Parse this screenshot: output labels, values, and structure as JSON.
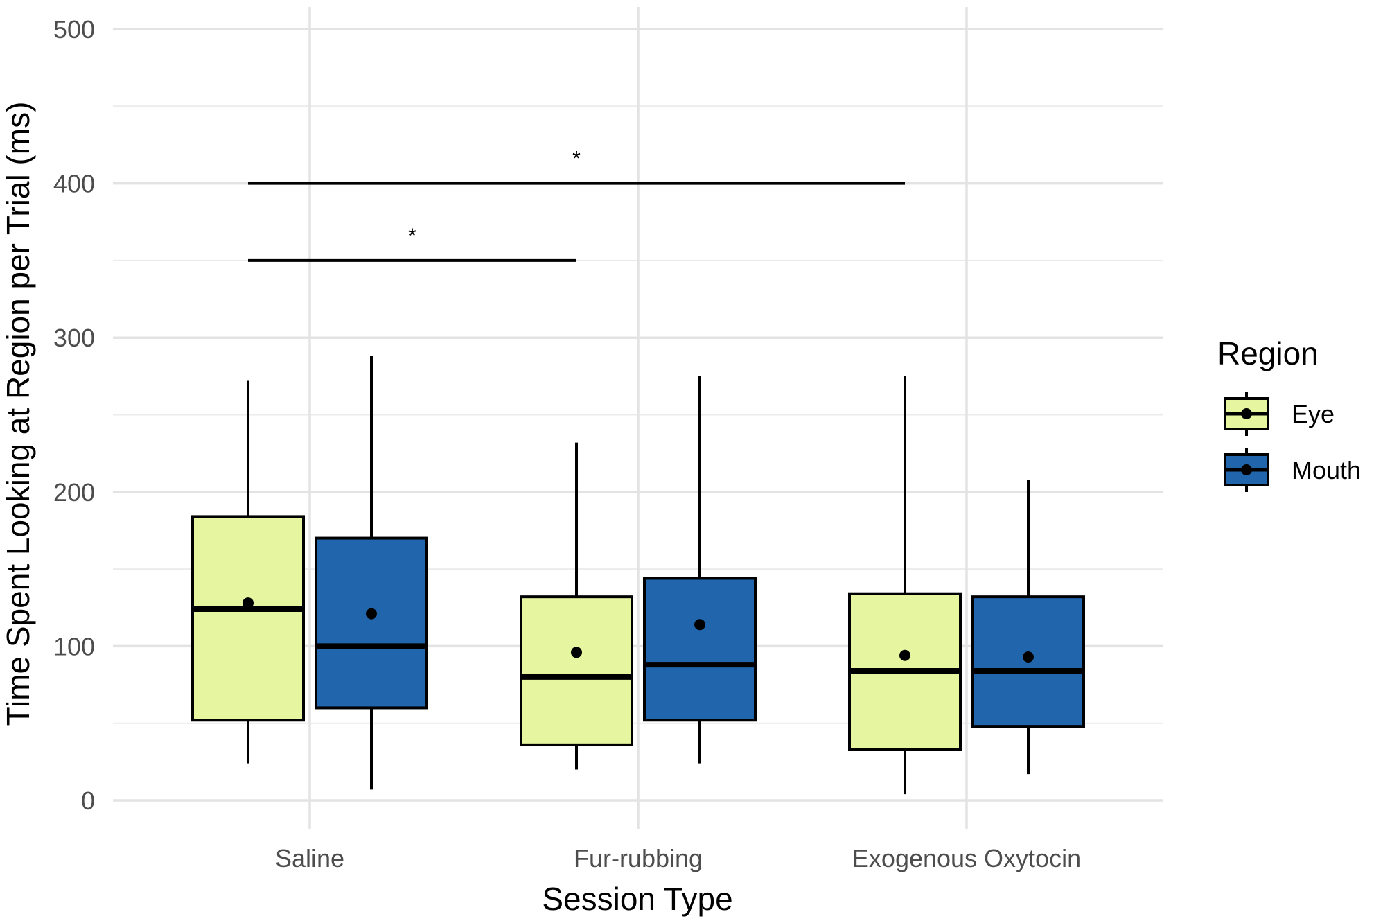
{
  "chart_data": {
    "type": "box",
    "title": "",
    "xlabel": "Session Type",
    "ylabel": "Time Spent Looking at Region per Trial (ms)",
    "ylim": [
      0,
      500
    ],
    "yticks": [
      "0",
      "100",
      "200",
      "300",
      "400",
      "500"
    ],
    "grid": true,
    "categories": [
      "Saline",
      "Fur-rubbing",
      "Exogenous Oxytocin"
    ],
    "legend": {
      "title": "Region",
      "position": "right",
      "entries": [
        "Eye",
        "Mouth"
      ]
    },
    "series": [
      {
        "name": "Eye",
        "color": "#e5f5a0",
        "boxes": [
          {
            "category": "Saline",
            "min": 24,
            "q1": 52,
            "median": 124,
            "q3": 184,
            "max": 272,
            "mean": 128
          },
          {
            "category": "Fur-rubbing",
            "min": 20,
            "q1": 36,
            "median": 80,
            "q3": 132,
            "max": 232,
            "mean": 96
          },
          {
            "category": "Exogenous Oxytocin",
            "min": 4,
            "q1": 33,
            "median": 84,
            "q3": 134,
            "max": 275,
            "mean": 94
          }
        ]
      },
      {
        "name": "Mouth",
        "color": "#2166ac",
        "boxes": [
          {
            "category": "Saline",
            "min": 7,
            "q1": 60,
            "median": 100,
            "q3": 170,
            "max": 288,
            "mean": 121
          },
          {
            "category": "Fur-rubbing",
            "min": 24,
            "q1": 52,
            "median": 88,
            "q3": 144,
            "max": 275,
            "mean": 114
          },
          {
            "category": "Exogenous Oxytocin",
            "min": 17,
            "q1": 48,
            "median": 84,
            "q3": 132,
            "max": 208,
            "mean": 93
          }
        ]
      }
    ],
    "annotations": [
      {
        "label": "*",
        "from": "Saline",
        "to": "Fur-rubbing",
        "y": 350
      },
      {
        "label": "*",
        "from": "Saline",
        "to": "Exogenous Oxytocin",
        "y": 400
      }
    ]
  }
}
